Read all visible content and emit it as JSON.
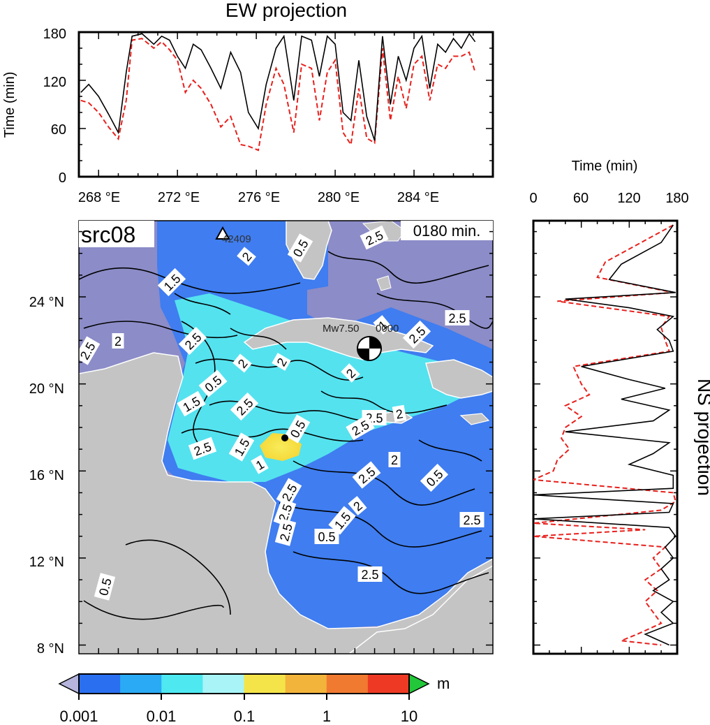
{
  "ew_panel": {
    "title": "EW projection",
    "ylabel": "Time (min)",
    "yticks": [
      "0",
      "60",
      "120",
      "180"
    ],
    "xticks": [
      "268 °E",
      "272 °E",
      "276 °E",
      "280 °E",
      "284 °E"
    ]
  },
  "ns_panel": {
    "title": "NS projection",
    "xlabel": "Time (min)",
    "xticks": [
      "0",
      "60",
      "120",
      "180"
    ]
  },
  "map": {
    "source_label": "src08",
    "time_label": "0180 min.",
    "event_label": "Mw7.50",
    "event_label_suffix": "0000",
    "station_label": "42409",
    "lat_ticks": [
      "8 °N",
      "12 °N",
      "16 °N",
      "20 °N",
      "24 °N"
    ],
    "contour_labels": [
      "2.5",
      "2",
      "0.5",
      "1.5",
      "2",
      "2.5",
      "2.5",
      "2",
      "2",
      "0.5",
      "2",
      "1.5",
      "1",
      "2.5",
      "2.5",
      "2.5",
      "2",
      "2.5",
      "2.5",
      "2",
      "2.5",
      "2.5",
      "0.5",
      "2.5",
      "2",
      "2.5",
      "1.5",
      "1",
      "0.5",
      "1.5",
      "2.5",
      "2.5",
      "0.5",
      "2.5",
      "0.5"
    ],
    "colors": {
      "deep_sea": "#8c8cc8",
      "land": "#c4c4c4",
      "wave_blue": "#3f7df0",
      "wave_cyan": "#55e8ee",
      "wave_yellow": "#f5e24a"
    }
  },
  "colorbar": {
    "unit": "m",
    "tick_labels": [
      "0.001",
      "0.01",
      "0.1",
      "1",
      "10"
    ],
    "segments": [
      "#2a6ff0",
      "#2aaaf5",
      "#4de8f0",
      "#a8f4f6",
      "#f4e44a",
      "#f2b43a",
      "#f07a30",
      "#ee3a24"
    ],
    "under_color": "#b4b4dc",
    "over_color": "#22c83a"
  },
  "chart_data": {
    "type": "line",
    "ew_projection": {
      "xlim": [
        267,
        288
      ],
      "ylim": [
        0,
        180
      ],
      "series": [
        {
          "values": [
            [
              267.1,
              105
            ],
            [
              267.5,
              115
            ],
            [
              268,
              100
            ],
            [
              268.5,
              78
            ],
            [
              269,
              55
            ],
            [
              269.4,
              130
            ],
            [
              269.7,
              175
            ],
            [
              270.2,
              178
            ],
            [
              270.8,
              165
            ],
            [
              271.2,
              175
            ],
            [
              271.6,
              170
            ],
            [
              272,
              150
            ],
            [
              272.4,
              135
            ],
            [
              272.8,
              165
            ],
            [
              273.2,
              158
            ],
            [
              273.7,
              135
            ],
            [
              274.2,
              110
            ],
            [
              274.7,
              155
            ],
            [
              275.2,
              130
            ],
            [
              275.6,
              80
            ],
            [
              276.1,
              60
            ],
            [
              276.5,
              115
            ],
            [
              277,
              160
            ],
            [
              277.4,
              175
            ],
            [
              277.9,
              95
            ],
            [
              278.3,
              175
            ],
            [
              278.8,
              170
            ],
            [
              279.2,
              125
            ],
            [
              279.6,
              175
            ],
            [
              280,
              165
            ],
            [
              280.4,
              80
            ],
            [
              280.8,
              70
            ],
            [
              281.2,
              145
            ],
            [
              281.6,
              75
            ],
            [
              282,
              45
            ],
            [
              282.4,
              175
            ],
            [
              282.8,
              90
            ],
            [
              283.2,
              150
            ],
            [
              283.6,
              120
            ],
            [
              284,
              160
            ],
            [
              284.4,
              175
            ],
            [
              284.8,
              110
            ],
            [
              285.2,
              165
            ],
            [
              285.6,
              155
            ],
            [
              286,
              172
            ],
            [
              286.4,
              160
            ],
            [
              286.8,
              178
            ],
            [
              287.1,
              168
            ]
          ]
        },
        {
          "values": [
            [
              267.1,
              95
            ],
            [
              267.5,
              92
            ],
            [
              268,
              80
            ],
            [
              268.5,
              62
            ],
            [
              269,
              47
            ],
            [
              269.4,
              95
            ],
            [
              269.7,
              170
            ],
            [
              270.2,
              172
            ],
            [
              270.8,
              160
            ],
            [
              271.2,
              168
            ],
            [
              271.6,
              158
            ],
            [
              272,
              145
            ],
            [
              272.4,
              105
            ],
            [
              272.8,
              120
            ],
            [
              273.2,
              110
            ],
            [
              273.7,
              90
            ],
            [
              274.2,
              62
            ],
            [
              274.7,
              75
            ],
            [
              275.2,
              40
            ],
            [
              275.6,
              38
            ],
            [
              276.1,
              33
            ],
            [
              276.5,
              90
            ],
            [
              277,
              135
            ],
            [
              277.4,
              115
            ],
            [
              277.9,
              55
            ],
            [
              278.3,
              140
            ],
            [
              278.8,
              135
            ],
            [
              279.2,
              70
            ],
            [
              279.6,
              130
            ],
            [
              280,
              145
            ],
            [
              280.4,
              55
            ],
            [
              280.8,
              40
            ],
            [
              281.2,
              110
            ],
            [
              281.6,
              48
            ],
            [
              282,
              42
            ],
            [
              282.4,
              160
            ],
            [
              282.8,
              70
            ],
            [
              283.2,
              125
            ],
            [
              283.6,
              85
            ],
            [
              284,
              140
            ],
            [
              284.4,
              150
            ],
            [
              284.8,
              95
            ],
            [
              285.2,
              140
            ],
            [
              285.6,
              135
            ],
            [
              286,
              150
            ],
            [
              286.4,
              150
            ],
            [
              286.8,
              155
            ],
            [
              287.1,
              130
            ]
          ]
        }
      ]
    },
    "ns_projection": {
      "xlim": [
        0,
        180
      ],
      "ylim": [
        7.6,
        27.5
      ],
      "series": [
        {
          "values": [
            [
              175,
              27.3
            ],
            [
              160,
              26.5
            ],
            [
              110,
              25.5
            ],
            [
              95,
              24.8
            ],
            [
              178,
              24.2
            ],
            [
              40,
              23.9
            ],
            [
              120,
              23.5
            ],
            [
              175,
              23.1
            ],
            [
              155,
              22.5
            ],
            [
              170,
              22.0
            ],
            [
              175,
              21.5
            ],
            [
              60,
              20.8
            ],
            [
              120,
              20.2
            ],
            [
              165,
              19.8
            ],
            [
              110,
              19.3
            ],
            [
              170,
              18.8
            ],
            [
              150,
              18.3
            ],
            [
              40,
              17.8
            ],
            [
              170,
              17.3
            ],
            [
              150,
              16.8
            ],
            [
              120,
              16.3
            ],
            [
              175,
              15.8
            ],
            [
              175,
              15.2
            ],
            [
              0,
              14.9
            ],
            [
              175,
              14.5
            ],
            [
              170,
              14.1
            ],
            [
              0,
              13.8
            ],
            [
              170,
              13.4
            ],
            [
              178,
              13.0
            ],
            [
              165,
              12.5
            ],
            [
              175,
              12.0
            ],
            [
              160,
              11.5
            ],
            [
              170,
              11.0
            ],
            [
              150,
              10.5
            ],
            [
              175,
              10.0
            ],
            [
              160,
              9.5
            ],
            [
              175,
              9.0
            ],
            [
              140,
              8.5
            ],
            [
              170,
              8.0
            ]
          ]
        },
        {
          "values": [
            [
              175,
              27.3
            ],
            [
              140,
              26.6
            ],
            [
              90,
              25.6
            ],
            [
              80,
              24.9
            ],
            [
              175,
              24.2
            ],
            [
              30,
              23.8
            ],
            [
              110,
              23.4
            ],
            [
              170,
              23.1
            ],
            [
              160,
              22.6
            ],
            [
              165,
              22.0
            ],
            [
              170,
              21.5
            ],
            [
              50,
              20.8
            ],
            [
              60,
              20.0
            ],
            [
              70,
              19.5
            ],
            [
              40,
              19.0
            ],
            [
              60,
              18.5
            ],
            [
              40,
              18.0
            ],
            [
              35,
              17.5
            ],
            [
              45,
              17.0
            ],
            [
              30,
              16.5
            ],
            [
              25,
              16.0
            ],
            [
              0,
              15.6
            ],
            [
              175,
              15.0
            ],
            [
              178,
              14.6
            ],
            [
              160,
              14.2
            ],
            [
              0,
              13.6
            ],
            [
              140,
              13.3
            ],
            [
              0,
              13.0
            ],
            [
              165,
              12.5
            ],
            [
              150,
              12.0
            ],
            [
              160,
              11.5
            ],
            [
              140,
              11.0
            ],
            [
              155,
              10.5
            ],
            [
              140,
              10.0
            ],
            [
              150,
              9.5
            ],
            [
              160,
              9.0
            ],
            [
              130,
              8.5
            ],
            [
              110,
              8.2
            ],
            [
              160,
              8.0
            ]
          ]
        }
      ]
    }
  }
}
